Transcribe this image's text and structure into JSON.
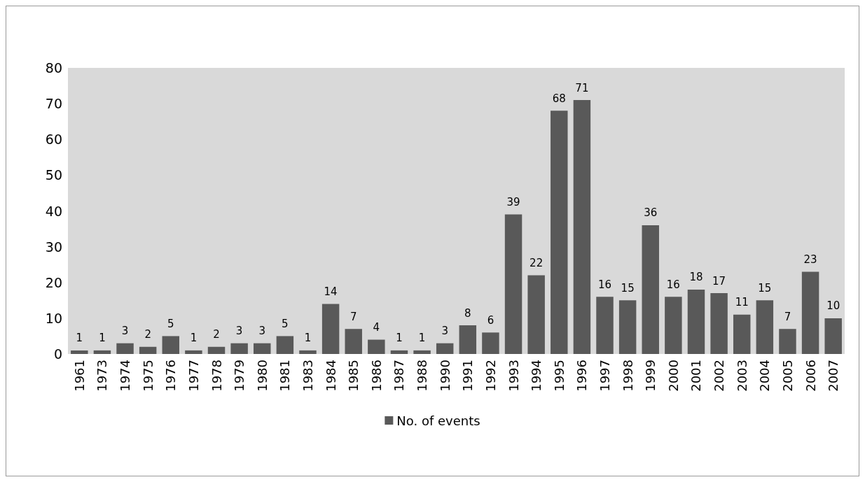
{
  "chart_data": {
    "type": "bar",
    "categories": [
      "1961",
      "1973",
      "1974",
      "1975",
      "1976",
      "1977",
      "1978",
      "1979",
      "1980",
      "1981",
      "1983",
      "1984",
      "1985",
      "1986",
      "1987",
      "1988",
      "1990",
      "1991",
      "1992",
      "1993",
      "1994",
      "1995",
      "1996",
      "1997",
      "1998",
      "1999",
      "2000",
      "2001",
      "2002",
      "2003",
      "2004",
      "2005",
      "2006",
      "2007"
    ],
    "series": [
      {
        "name": "No. of events",
        "color": "#595959",
        "values": [
          1,
          1,
          3,
          2,
          5,
          1,
          2,
          3,
          3,
          5,
          1,
          14,
          7,
          4,
          1,
          1,
          3,
          8,
          6,
          39,
          22,
          68,
          71,
          16,
          15,
          36,
          16,
          18,
          17,
          11,
          15,
          7,
          23,
          10
        ]
      }
    ],
    "ylim": [
      0,
      80
    ],
    "yticks": [
      0,
      10,
      20,
      30,
      40,
      50,
      60,
      70,
      80
    ],
    "data_labels": true,
    "grid": false,
    "legend": "bottom"
  }
}
